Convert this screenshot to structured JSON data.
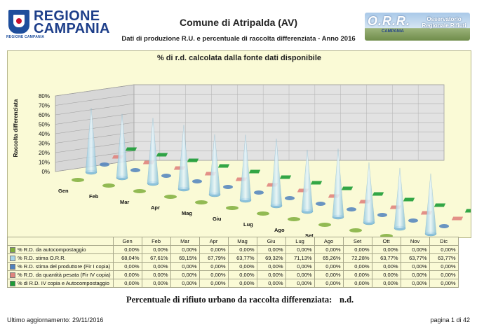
{
  "header": {
    "region_name": "REGIONE CAMPANIA",
    "region_caption": "REGIONE CAMPANIA",
    "title": "Comune di Atripalda (AV)",
    "subtitle": "Dati di produzione R.U. e percentuale di raccolta differenziata - Anno 2016",
    "orr_logo_text": "O.R.R.",
    "orr_logo_region": "CAMPANIA",
    "orr_logo_caption": "Osservatorio Regionale Rifiuti"
  },
  "chart_data": {
    "type": "3d-cone",
    "title": "% di r.d. calcolata dalla fonte dati disponibile",
    "ylabel": "Raccolta differenziata",
    "ylim": [
      0,
      80
    ],
    "yticks": [
      "0%",
      "10%",
      "20%",
      "30%",
      "40%",
      "50%",
      "60%",
      "70%",
      "80%"
    ],
    "grid": true,
    "categories": [
      "Gen",
      "Feb",
      "Mar",
      "Apr",
      "Mag",
      "Giu",
      "Lug",
      "Ago",
      "Set",
      "Ott",
      "Nov",
      "Dic"
    ],
    "series": [
      {
        "name": "% R.D. da autocompostaggio",
        "color": "#7fae3c",
        "values": [
          0,
          0,
          0,
          0,
          0,
          0,
          0,
          0,
          0,
          0,
          0,
          0
        ],
        "display": [
          "0,00%",
          "0,00%",
          "0,00%",
          "0,00%",
          "0,00%",
          "0,00%",
          "0,00%",
          "0,00%",
          "0,00%",
          "0,00%",
          "0,00%",
          "0,00%"
        ]
      },
      {
        "name": "% R.D. stima O.R.R.",
        "color": "#a8d6ea",
        "values": [
          68.04,
          67.61,
          69.15,
          67.79,
          63.77,
          69.32,
          71.13,
          65.26,
          72.28,
          63.77,
          63.77,
          63.77
        ],
        "display": [
          "68,04%",
          "67,61%",
          "69,15%",
          "67,79%",
          "63,77%",
          "69,32%",
          "71,13%",
          "65,26%",
          "72,28%",
          "63,77%",
          "63,77%",
          "63,77%"
        ]
      },
      {
        "name": "% R.D. stima del produttore (Fir I copia)",
        "color": "#4f81bd",
        "values": [
          0,
          0,
          0,
          0,
          0,
          0,
          0,
          0,
          0,
          0,
          0,
          0
        ],
        "display": [
          "0,00%",
          "0,00%",
          "0,00%",
          "0,00%",
          "0,00%",
          "0,00%",
          "0,00%",
          "0,00%",
          "0,00%",
          "0,00%",
          "0,00%",
          "0,00%"
        ]
      },
      {
        "name": "% R.D. da quantità pesata (Fir IV copia)",
        "color": "#e0847e",
        "values": [
          0,
          0,
          0,
          0,
          0,
          0,
          0,
          0,
          0,
          0,
          0,
          0
        ],
        "display": [
          "0,00%",
          "0,00%",
          "0,00%",
          "0,00%",
          "0,00%",
          "0,00%",
          "0,00%",
          "0,00%",
          "0,00%",
          "0,00%",
          "0,00%",
          "0,00%"
        ]
      },
      {
        "name": "% di R.D. IV copia e Autocompostaggio",
        "color": "#1c9c35",
        "values": [
          0,
          0,
          0,
          0,
          0,
          0,
          0,
          0,
          0,
          0,
          0,
          0
        ],
        "display": [
          "0,00%",
          "0,00%",
          "0,00%",
          "0,00%",
          "0,00%",
          "0,00%",
          "0,00%",
          "0,00%",
          "0,00%",
          "0,00%",
          "0,00%",
          "0,00%"
        ]
      }
    ]
  },
  "summary": {
    "label": "Percentuale di rifiuto urbano da raccolta differenziata:",
    "value": "n.d."
  },
  "footer": {
    "updated": "Ultimo aggiornamento: 29/11/2016",
    "page": "pagina 1 di 42"
  }
}
